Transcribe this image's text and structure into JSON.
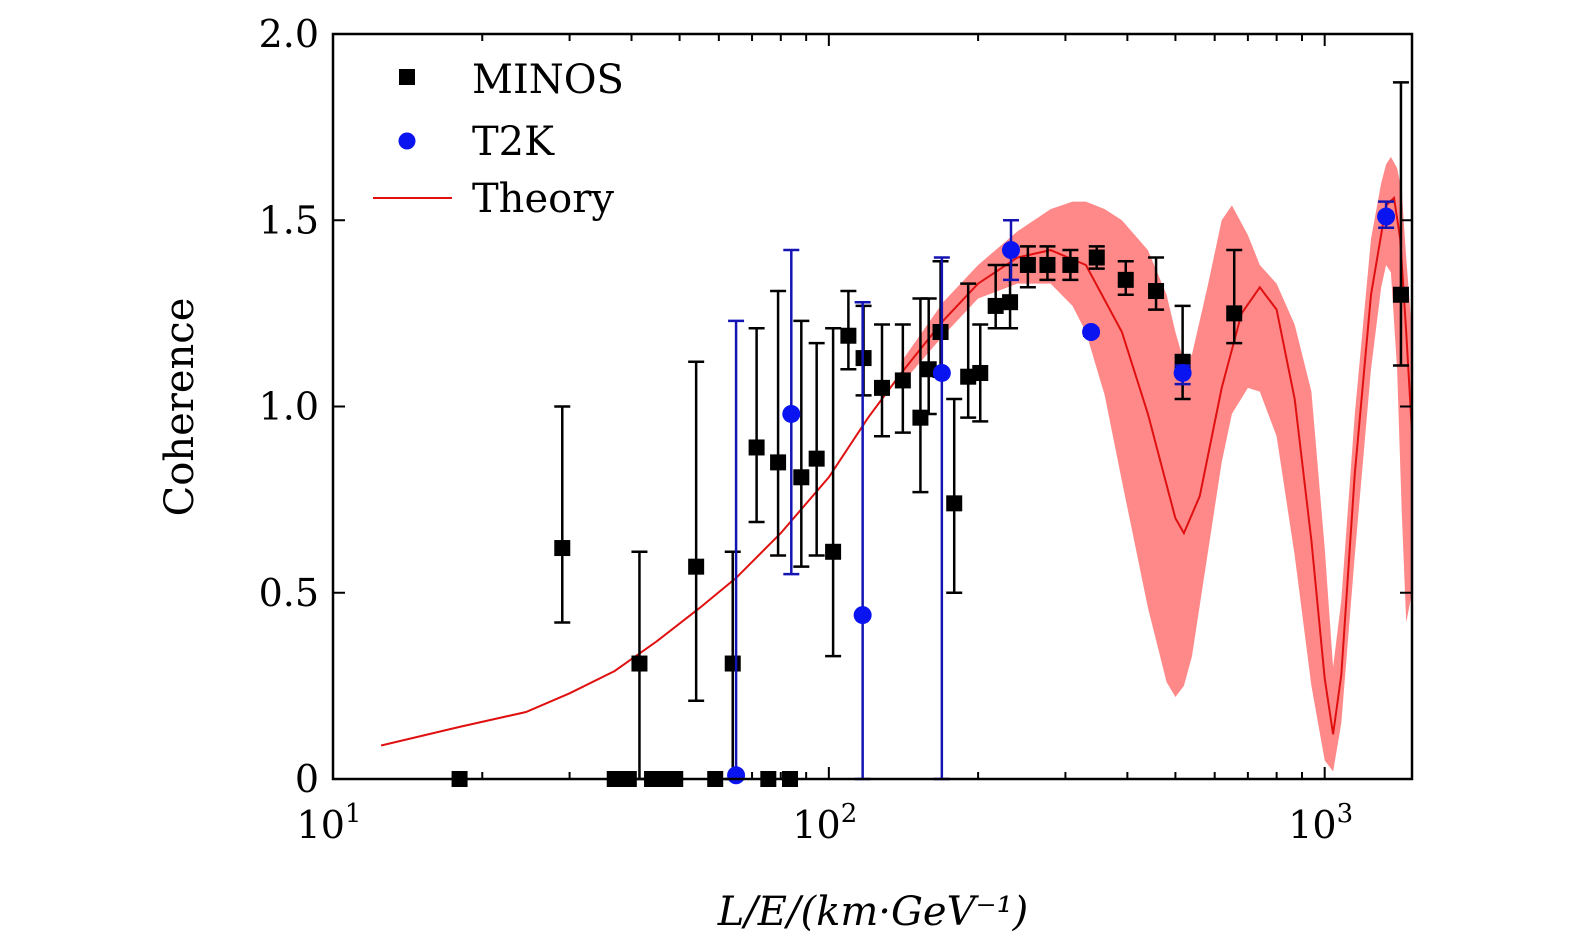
{
  "chart_data": {
    "type": "scatter",
    "title": "",
    "xlabel": "L/E/(km·GeV⁻¹)",
    "ylabel": "Coherence",
    "xscale": "log",
    "xlim": [
      10,
      1500
    ],
    "ylim": [
      0,
      2.0
    ],
    "grid": false,
    "legend_position": "top-left",
    "x_ticks": [
      {
        "value": 10,
        "base": "10",
        "exp": "1"
      },
      {
        "value": 100,
        "base": "10",
        "exp": "2"
      },
      {
        "value": 1000,
        "base": "10",
        "exp": "3"
      }
    ],
    "y_ticks": [
      {
        "value": 0,
        "label": "0"
      },
      {
        "value": 0.5,
        "label": "0.5"
      },
      {
        "value": 1.0,
        "label": "1.0"
      },
      {
        "value": 1.5,
        "label": "1.5"
      },
      {
        "value": 2.0,
        "label": "2.0"
      }
    ],
    "colors": {
      "minos": "#000000",
      "t2k": "#0a14f0",
      "t2k_errorbar": "#1414b4",
      "theory": "#e01010",
      "band": "#ff6b6b"
    },
    "legend": [
      {
        "key": "minos",
        "label": "MINOS"
      },
      {
        "key": "t2k",
        "label": "T2K"
      },
      {
        "key": "theory",
        "label": "Theory"
      }
    ],
    "series": [
      {
        "name": "MINOS",
        "marker": "square",
        "points": [
          {
            "x": 18,
            "y": 0.0,
            "lo": 0.0,
            "hi": 0.0
          },
          {
            "x": 29,
            "y": 0.62,
            "lo": 0.42,
            "hi": 1.0
          },
          {
            "x": 37,
            "y": 0.0,
            "lo": 0.0,
            "hi": 0.0
          },
          {
            "x": 39.5,
            "y": 0.0,
            "lo": 0.0,
            "hi": 0.0
          },
          {
            "x": 41.5,
            "y": 0.31,
            "lo": 0.0,
            "hi": 0.61
          },
          {
            "x": 44,
            "y": 0.0,
            "lo": 0.0,
            "hi": 0.0
          },
          {
            "x": 46.5,
            "y": 0.0,
            "lo": 0.0,
            "hi": 0.0
          },
          {
            "x": 49,
            "y": 0.0,
            "lo": 0.0,
            "hi": 0.0
          },
          {
            "x": 54,
            "y": 0.57,
            "lo": 0.21,
            "hi": 1.12
          },
          {
            "x": 59,
            "y": 0.0,
            "lo": 0.0,
            "hi": 0.0
          },
          {
            "x": 64,
            "y": 0.31,
            "lo": 0.0,
            "hi": 0.61
          },
          {
            "x": 71.5,
            "y": 0.89,
            "lo": 0.69,
            "hi": 1.21
          },
          {
            "x": 75.5,
            "y": 0.0,
            "lo": 0.0,
            "hi": 0.0
          },
          {
            "x": 79,
            "y": 0.85,
            "lo": 0.6,
            "hi": 1.31
          },
          {
            "x": 83.5,
            "y": 0.0,
            "lo": 0.0,
            "hi": 0.0
          },
          {
            "x": 88,
            "y": 0.81,
            "lo": 0.57,
            "hi": 1.23
          },
          {
            "x": 94.5,
            "y": 0.86,
            "lo": 0.6,
            "hi": 1.17
          },
          {
            "x": 102,
            "y": 0.61,
            "lo": 0.33,
            "hi": 1.21
          },
          {
            "x": 109.5,
            "y": 1.19,
            "lo": 1.1,
            "hi": 1.31
          },
          {
            "x": 117.5,
            "y": 1.13,
            "lo": 1.03,
            "hi": 1.27
          },
          {
            "x": 128,
            "y": 1.05,
            "lo": 0.92,
            "hi": 1.22
          },
          {
            "x": 141,
            "y": 1.07,
            "lo": 0.93,
            "hi": 1.22
          },
          {
            "x": 153,
            "y": 0.97,
            "lo": 0.77,
            "hi": 1.29
          },
          {
            "x": 159,
            "y": 1.1,
            "lo": 0.98,
            "hi": 1.29
          },
          {
            "x": 168,
            "y": 1.2,
            "lo": 1.08,
            "hi": 1.39
          },
          {
            "x": 179,
            "y": 0.74,
            "lo": 0.5,
            "hi": 1.02
          },
          {
            "x": 191,
            "y": 1.08,
            "lo": 0.97,
            "hi": 1.33
          },
          {
            "x": 202,
            "y": 1.09,
            "lo": 0.96,
            "hi": 1.22
          },
          {
            "x": 217,
            "y": 1.27,
            "lo": 1.21,
            "hi": 1.38
          },
          {
            "x": 232,
            "y": 1.28,
            "lo": 1.21,
            "hi": 1.38
          },
          {
            "x": 252,
            "y": 1.38,
            "lo": 1.32,
            "hi": 1.43
          },
          {
            "x": 276,
            "y": 1.38,
            "lo": 1.34,
            "hi": 1.43
          },
          {
            "x": 307,
            "y": 1.38,
            "lo": 1.34,
            "hi": 1.42
          },
          {
            "x": 347,
            "y": 1.4,
            "lo": 1.37,
            "hi": 1.43
          },
          {
            "x": 397,
            "y": 1.34,
            "lo": 1.3,
            "hi": 1.39
          },
          {
            "x": 457,
            "y": 1.31,
            "lo": 1.26,
            "hi": 1.4
          },
          {
            "x": 517,
            "y": 1.12,
            "lo": 1.02,
            "hi": 1.27
          },
          {
            "x": 657,
            "y": 1.25,
            "lo": 1.17,
            "hi": 1.42
          },
          {
            "x": 1425,
            "y": 1.3,
            "lo": 1.11,
            "hi": 1.87
          }
        ]
      },
      {
        "name": "T2K",
        "marker": "circle",
        "points": [
          {
            "x": 65,
            "y": 0.01,
            "lo": 0.0,
            "hi": 1.23
          },
          {
            "x": 84,
            "y": 0.98,
            "lo": 0.55,
            "hi": 1.42
          },
          {
            "x": 117,
            "y": 0.44,
            "lo": 0.0,
            "hi": 1.28
          },
          {
            "x": 169,
            "y": 1.09,
            "lo": 0.0,
            "hi": 1.4
          },
          {
            "x": 233,
            "y": 1.42,
            "lo": 1.34,
            "hi": 1.5
          },
          {
            "x": 338,
            "y": 1.2,
            "lo": 1.19,
            "hi": 1.21
          },
          {
            "x": 517,
            "y": 1.09,
            "lo": 1.06,
            "hi": 1.11
          },
          {
            "x": 1330,
            "y": 1.51,
            "lo": 1.48,
            "hi": 1.55
          }
        ]
      }
    ],
    "theory": {
      "name": "Theory",
      "x": [
        12.5,
        18,
        24.5,
        30,
        37,
        45,
        55,
        65,
        80,
        100,
        120,
        140,
        170,
        200,
        240,
        280,
        330,
        390,
        440,
        500,
        520,
        560,
        620,
        680,
        740,
        800,
        870,
        940,
        1000,
        1040,
        1080,
        1150,
        1240,
        1330,
        1380,
        1420,
        1460,
        1500
      ],
      "y": [
        0.09,
        0.14,
        0.18,
        0.23,
        0.29,
        0.37,
        0.46,
        0.54,
        0.66,
        0.81,
        0.97,
        1.09,
        1.23,
        1.33,
        1.4,
        1.42,
        1.38,
        1.2,
        0.98,
        0.7,
        0.66,
        0.76,
        1.05,
        1.25,
        1.32,
        1.26,
        1.02,
        0.64,
        0.27,
        0.12,
        0.28,
        0.82,
        1.3,
        1.54,
        1.56,
        1.45,
        1.2,
        0.93
      ],
      "band_x": [
        140,
        170,
        200,
        240,
        280,
        310,
        330,
        360,
        390,
        440,
        480,
        500,
        520,
        540,
        580,
        620,
        650,
        700,
        740,
        800,
        870,
        940,
        1000,
        1040,
        1080,
        1150,
        1240,
        1300,
        1330,
        1360,
        1400,
        1430,
        1460,
        1500
      ],
      "band_lo": [
        1.06,
        1.19,
        1.29,
        1.33,
        1.33,
        1.27,
        1.2,
        1.03,
        0.8,
        0.46,
        0.26,
        0.22,
        0.25,
        0.33,
        0.6,
        0.85,
        0.98,
        1.05,
        1.04,
        0.92,
        0.6,
        0.25,
        0.05,
        0.02,
        0.15,
        0.6,
        1.1,
        1.32,
        1.38,
        1.36,
        1.1,
        0.72,
        0.42,
        0.5
      ],
      "band_hi": [
        1.12,
        1.28,
        1.38,
        1.47,
        1.53,
        1.55,
        1.55,
        1.53,
        1.5,
        1.42,
        1.3,
        1.2,
        1.12,
        1.14,
        1.32,
        1.5,
        1.54,
        1.46,
        1.38,
        1.33,
        1.22,
        1.04,
        0.62,
        0.3,
        0.48,
        0.98,
        1.45,
        1.6,
        1.65,
        1.67,
        1.64,
        1.58,
        1.4,
        1.2
      ]
    }
  }
}
